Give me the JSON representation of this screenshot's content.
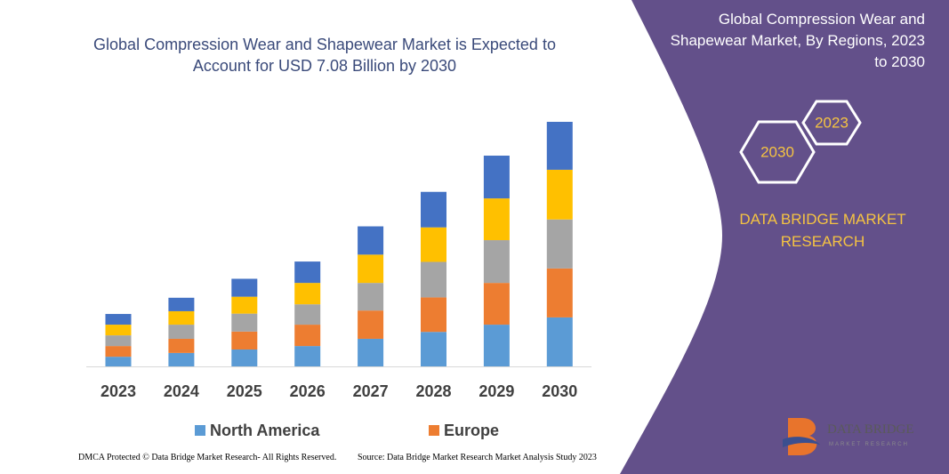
{
  "chart_data": {
    "type": "stacked_bar",
    "title": "Global Compression Wear and Shapewear Market is Expected to Account for USD 7.08 Billion by 2030",
    "categories": [
      "2023",
      "2024",
      "2025",
      "2026",
      "2027",
      "2028",
      "2029",
      "2030"
    ],
    "series": [
      {
        "name": "North America",
        "color": "#5b9bd5",
        "values": [
          0.28,
          0.39,
          0.49,
          0.59,
          0.8,
          1.0,
          1.21,
          1.42
        ]
      },
      {
        "name": "Europe",
        "color": "#ed7d31",
        "values": [
          0.31,
          0.41,
          0.52,
          0.62,
          0.82,
          1.0,
          1.21,
          1.42
        ]
      },
      {
        "color": "#a5a5a5",
        "values": [
          0.31,
          0.41,
          0.52,
          0.59,
          0.8,
          1.03,
          1.24,
          1.42
        ]
      },
      {
        "color": "#ffc000",
        "values": [
          0.31,
          0.39,
          0.49,
          0.62,
          0.82,
          1.0,
          1.21,
          1.44
        ]
      },
      {
        "color": "#4472c4",
        "values": [
          0.31,
          0.39,
          0.52,
          0.62,
          0.82,
          1.03,
          1.24,
          1.39
        ]
      }
    ]
  },
  "side_panel": {
    "title": "Global Compression Wear and Shapewear Market, By Regions, 2023 to 2030",
    "hex_start": "2023",
    "hex_end": "2030",
    "brand": "DATA BRIDGE MARKET RESEARCH"
  },
  "logo": {
    "name": "DATA BRIDGE",
    "tagline": "MARKET RESEARCH"
  },
  "footer": {
    "left": "DMCA Protected © Data Bridge Market Research- All Rights Reserved.",
    "right": "Source: Data Bridge Market Research Market Analysis Study 2023"
  }
}
